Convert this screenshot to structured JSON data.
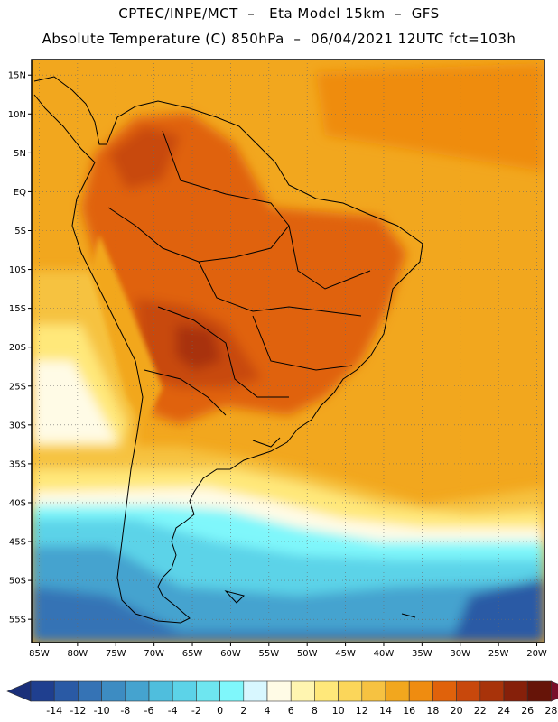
{
  "header": {
    "line1": "CPTEC/INPE/MCT  –   Eta Model 15km  –  GFS",
    "line2": "Absolute Temperature (C) 850hPa  –  06/04/2021 12UTC fct=103h"
  },
  "map": {
    "lon_range": [
      -86,
      -19
    ],
    "lat_range": [
      -58,
      17
    ],
    "lat_ticks": [
      "15N",
      "10N",
      "5N",
      "EQ",
      "5S",
      "10S",
      "15S",
      "20S",
      "25S",
      "30S",
      "35S",
      "40S",
      "45S",
      "50S",
      "55S"
    ],
    "lat_values": [
      15,
      10,
      5,
      0,
      -5,
      -10,
      -15,
      -20,
      -25,
      -30,
      -35,
      -40,
      -45,
      -50,
      -55
    ],
    "lon_ticks": [
      "85W",
      "80W",
      "75W",
      "70W",
      "65W",
      "60W",
      "55W",
      "50W",
      "45W",
      "40W",
      "35W",
      "30W",
      "25W",
      "20W"
    ],
    "lon_values": [
      -85,
      -80,
      -75,
      -70,
      -65,
      -60,
      -55,
      -50,
      -45,
      -40,
      -35,
      -30,
      -25,
      -20
    ],
    "grid": true
  },
  "colorbar": {
    "labels": [
      "-14",
      "-12",
      "-10",
      "-8",
      "-6",
      "-4",
      "-2",
      "0",
      "2",
      "4",
      "6",
      "8",
      "10",
      "12",
      "14",
      "16",
      "18",
      "20",
      "22",
      "24",
      "26",
      "28"
    ],
    "colors": [
      "#1f3f8f",
      "#2a5aa5",
      "#3573b5",
      "#3d8cc2",
      "#45a3cf",
      "#4fbedd",
      "#5cd3e8",
      "#6ee6f0",
      "#7ff7fb",
      "#d8f7ff",
      "#fffbe6",
      "#fff5b0",
      "#ffe87a",
      "#fbd65a",
      "#f6c241",
      "#f2a71e",
      "#ef8c10",
      "#e0620b",
      "#c8480c",
      "#a8330a",
      "#86200a",
      "#661408"
    ],
    "low_color": "#1a2f7a",
    "high_color": "#7a0f2a"
  }
}
